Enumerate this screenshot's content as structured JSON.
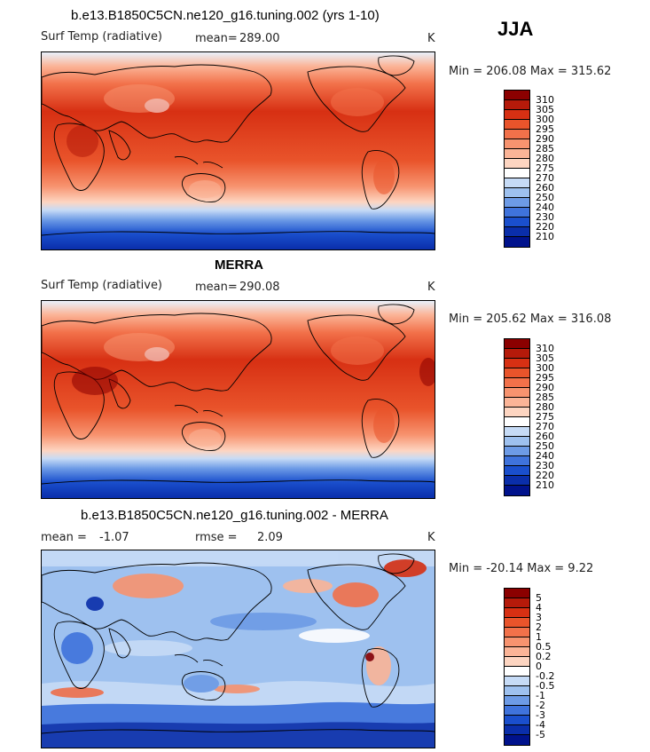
{
  "season": "JJA",
  "panels": [
    {
      "title": "b.e13.B1850C5CN.ne120_g16.tuning.002 (yrs 1-10)",
      "title_bold": false,
      "left_label": "Surf Temp (radiative)",
      "stat_label": "mean=",
      "stat_value": "289.00",
      "stat2_label": "",
      "stat2_value": "",
      "units": "K",
      "min_max": "Min = 206.08 Max = 315.62",
      "map_type": "absolute"
    },
    {
      "title": "MERRA",
      "title_bold": true,
      "left_label": "Surf Temp (radiative)",
      "stat_label": "mean=",
      "stat_value": "290.08",
      "stat2_label": "",
      "stat2_value": "",
      "units": "K",
      "min_max": "Min = 205.62 Max = 316.08",
      "map_type": "absolute"
    },
    {
      "title": "b.e13.B1850C5CN.ne120_g16.tuning.002 - MERRA",
      "title_bold": false,
      "left_label": "mean =",
      "stat_label": "",
      "stat_value": "-1.07",
      "stat2_label": "rmse =",
      "stat2_value": "2.09",
      "units": "K",
      "min_max": "Min = -20.14 Max =    9.22",
      "map_type": "difference"
    }
  ],
  "colorbars": {
    "absolute": {
      "labels": [
        "310",
        "305",
        "300",
        "295",
        "290",
        "285",
        "280",
        "275",
        "270",
        "260",
        "250",
        "240",
        "230",
        "220",
        "210"
      ],
      "colors": [
        "#8b0000",
        "#b51a0a",
        "#d73013",
        "#e9542b",
        "#f2714a",
        "#f7936f",
        "#fbb497",
        "#fdd5c1",
        "#ffffff",
        "#c6dbf6",
        "#9ec1ef",
        "#6d9be6",
        "#3f73dc",
        "#1a4fcd",
        "#0a2eaa",
        "#00128c"
      ]
    },
    "difference": {
      "labels": [
        "5",
        "4",
        "3",
        "2",
        "1",
        "0.5",
        "0.2",
        "0",
        "-0.2",
        "-0.5",
        "-1",
        "-2",
        "-3",
        "-4",
        "-5"
      ],
      "colors": [
        "#8b0000",
        "#b51a0a",
        "#d73013",
        "#e9542b",
        "#f2714a",
        "#f7936f",
        "#fbb497",
        "#fdd5c1",
        "#ffffff",
        "#c6dbf6",
        "#9ec1ef",
        "#6d9be6",
        "#3f73dc",
        "#1a4fcd",
        "#0a2eaa",
        "#00128c"
      ]
    }
  }
}
